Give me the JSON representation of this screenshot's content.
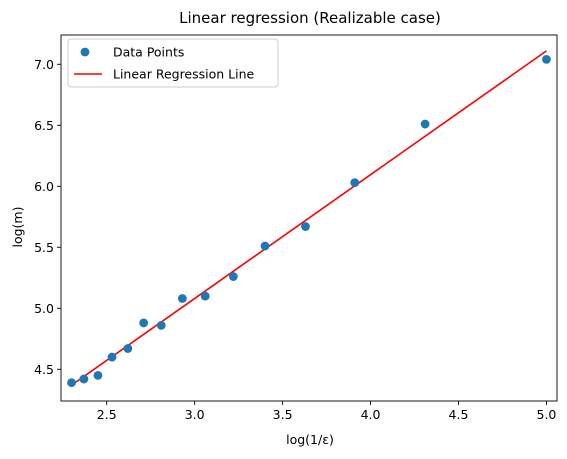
{
  "chart_data": {
    "type": "scatter",
    "title": "Linear regression (Realizable case)",
    "xlabel": "log(1/ε)",
    "ylabel": "log(m)",
    "xlim": [
      2.24,
      5.06
    ],
    "ylim": [
      4.24,
      7.24
    ],
    "x_ticks": [
      2.5,
      3.0,
      3.5,
      4.0,
      4.5,
      5.0
    ],
    "x_tick_labels": [
      "2.5",
      "3.0",
      "3.5",
      "4.0",
      "4.5",
      "5.0"
    ],
    "y_ticks": [
      4.5,
      5.0,
      5.5,
      6.0,
      6.5,
      7.0
    ],
    "y_tick_labels": [
      "4.5",
      "5.0",
      "5.5",
      "6.0",
      "6.5",
      "7.0"
    ],
    "grid": false,
    "legend_position": "top-left",
    "series": [
      {
        "name": "Data Points",
        "kind": "scatter",
        "color": "#1f77b4",
        "points": [
          {
            "x": 2.3,
            "y": 4.39
          },
          {
            "x": 2.37,
            "y": 4.42
          },
          {
            "x": 2.45,
            "y": 4.45
          },
          {
            "x": 2.53,
            "y": 4.6
          },
          {
            "x": 2.62,
            "y": 4.67
          },
          {
            "x": 2.71,
            "y": 4.88
          },
          {
            "x": 2.81,
            "y": 4.86
          },
          {
            "x": 2.93,
            "y": 5.08
          },
          {
            "x": 3.06,
            "y": 5.1
          },
          {
            "x": 3.22,
            "y": 5.26
          },
          {
            "x": 3.4,
            "y": 5.51
          },
          {
            "x": 3.63,
            "y": 5.67
          },
          {
            "x": 3.91,
            "y": 6.03
          },
          {
            "x": 4.31,
            "y": 6.51
          },
          {
            "x": 5.0,
            "y": 7.04
          }
        ]
      },
      {
        "name": "Linear Regression Line",
        "kind": "line",
        "color": "#ff0000",
        "points": [
          {
            "x": 2.3,
            "y": 4.37
          },
          {
            "x": 5.0,
            "y": 7.11
          }
        ]
      }
    ]
  }
}
